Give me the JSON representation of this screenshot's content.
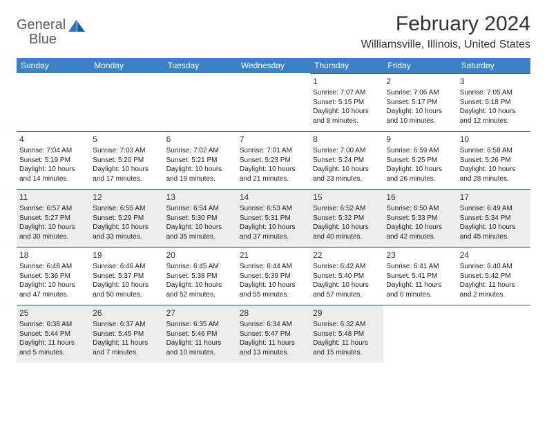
{
  "logo": {
    "word1": "General",
    "word2": "Blue"
  },
  "title": "February 2024",
  "location": "Williamsville, Illinois, United States",
  "accent": "#3b82c4",
  "border": "#2c5478",
  "shade": "#ededed",
  "dayNames": [
    "Sunday",
    "Monday",
    "Tuesday",
    "Wednesday",
    "Thursday",
    "Friday",
    "Saturday"
  ],
  "startOffset": 4,
  "daysInMonth": 29,
  "shadedRows": [
    2,
    4
  ],
  "days": [
    {
      "n": 1,
      "sr": "7:07 AM",
      "ss": "5:15 PM",
      "dl": "10 hours and 8 minutes."
    },
    {
      "n": 2,
      "sr": "7:06 AM",
      "ss": "5:17 PM",
      "dl": "10 hours and 10 minutes."
    },
    {
      "n": 3,
      "sr": "7:05 AM",
      "ss": "5:18 PM",
      "dl": "10 hours and 12 minutes."
    },
    {
      "n": 4,
      "sr": "7:04 AM",
      "ss": "5:19 PM",
      "dl": "10 hours and 14 minutes."
    },
    {
      "n": 5,
      "sr": "7:03 AM",
      "ss": "5:20 PM",
      "dl": "10 hours and 17 minutes."
    },
    {
      "n": 6,
      "sr": "7:02 AM",
      "ss": "5:21 PM",
      "dl": "10 hours and 19 minutes."
    },
    {
      "n": 7,
      "sr": "7:01 AM",
      "ss": "5:23 PM",
      "dl": "10 hours and 21 minutes."
    },
    {
      "n": 8,
      "sr": "7:00 AM",
      "ss": "5:24 PM",
      "dl": "10 hours and 23 minutes."
    },
    {
      "n": 9,
      "sr": "6:59 AM",
      "ss": "5:25 PM",
      "dl": "10 hours and 26 minutes."
    },
    {
      "n": 10,
      "sr": "6:58 AM",
      "ss": "5:26 PM",
      "dl": "10 hours and 28 minutes."
    },
    {
      "n": 11,
      "sr": "6:57 AM",
      "ss": "5:27 PM",
      "dl": "10 hours and 30 minutes."
    },
    {
      "n": 12,
      "sr": "6:55 AM",
      "ss": "5:29 PM",
      "dl": "10 hours and 33 minutes."
    },
    {
      "n": 13,
      "sr": "6:54 AM",
      "ss": "5:30 PM",
      "dl": "10 hours and 35 minutes."
    },
    {
      "n": 14,
      "sr": "6:53 AM",
      "ss": "5:31 PM",
      "dl": "10 hours and 37 minutes."
    },
    {
      "n": 15,
      "sr": "6:52 AM",
      "ss": "5:32 PM",
      "dl": "10 hours and 40 minutes."
    },
    {
      "n": 16,
      "sr": "6:50 AM",
      "ss": "5:33 PM",
      "dl": "10 hours and 42 minutes."
    },
    {
      "n": 17,
      "sr": "6:49 AM",
      "ss": "5:34 PM",
      "dl": "10 hours and 45 minutes."
    },
    {
      "n": 18,
      "sr": "6:48 AM",
      "ss": "5:36 PM",
      "dl": "10 hours and 47 minutes."
    },
    {
      "n": 19,
      "sr": "6:46 AM",
      "ss": "5:37 PM",
      "dl": "10 hours and 50 minutes."
    },
    {
      "n": 20,
      "sr": "6:45 AM",
      "ss": "5:38 PM",
      "dl": "10 hours and 52 minutes."
    },
    {
      "n": 21,
      "sr": "6:44 AM",
      "ss": "5:39 PM",
      "dl": "10 hours and 55 minutes."
    },
    {
      "n": 22,
      "sr": "6:42 AM",
      "ss": "5:40 PM",
      "dl": "10 hours and 57 minutes."
    },
    {
      "n": 23,
      "sr": "6:41 AM",
      "ss": "5:41 PM",
      "dl": "11 hours and 0 minutes."
    },
    {
      "n": 24,
      "sr": "6:40 AM",
      "ss": "5:42 PM",
      "dl": "11 hours and 2 minutes."
    },
    {
      "n": 25,
      "sr": "6:38 AM",
      "ss": "5:44 PM",
      "dl": "11 hours and 5 minutes."
    },
    {
      "n": 26,
      "sr": "6:37 AM",
      "ss": "5:45 PM",
      "dl": "11 hours and 7 minutes."
    },
    {
      "n": 27,
      "sr": "6:35 AM",
      "ss": "5:46 PM",
      "dl": "11 hours and 10 minutes."
    },
    {
      "n": 28,
      "sr": "6:34 AM",
      "ss": "5:47 PM",
      "dl": "11 hours and 13 minutes."
    },
    {
      "n": 29,
      "sr": "6:32 AM",
      "ss": "5:48 PM",
      "dl": "11 hours and 15 minutes."
    }
  ],
  "labels": {
    "sunrise": "Sunrise:",
    "sunset": "Sunset:",
    "daylight": "Daylight:"
  }
}
